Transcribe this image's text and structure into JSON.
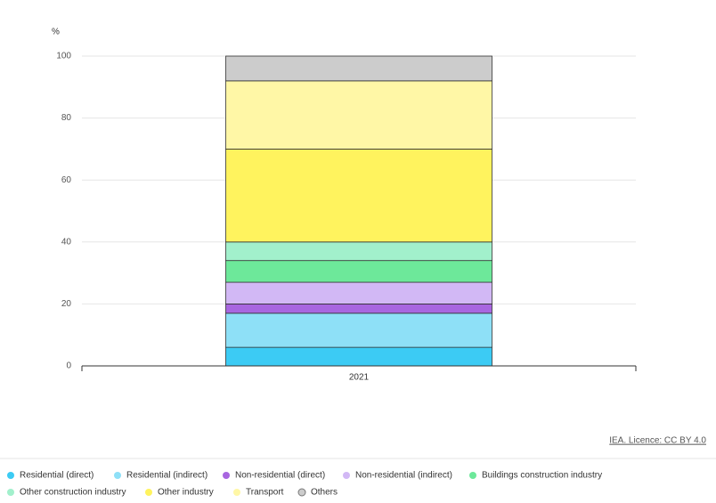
{
  "chart_data": {
    "type": "stacked-bar",
    "y_label": "%",
    "categories": [
      "2021"
    ],
    "series": [
      {
        "name": "Residential (direct)",
        "color": "#3ccbf4",
        "values": [
          6
        ]
      },
      {
        "name": "Residential (indirect)",
        "color": "#8ee0f7",
        "values": [
          11
        ]
      },
      {
        "name": "Non-residential (direct)",
        "color": "#a866e0",
        "values": [
          3
        ]
      },
      {
        "name": "Non-residential (indirect)",
        "color": "#d2b8f5",
        "values": [
          7
        ]
      },
      {
        "name": "Buildings construction industry",
        "color": "#6de89a",
        "values": [
          7
        ]
      },
      {
        "name": "Other construction industry",
        "color": "#a2f0cc",
        "values": [
          6
        ]
      },
      {
        "name": "Other industry",
        "color": "#fff35e",
        "values": [
          30
        ]
      },
      {
        "name": "Transport",
        "color": "#fff7a6",
        "values": [
          22
        ]
      },
      {
        "name": "Others",
        "color": "#cccccc",
        "values": [
          8
        ]
      }
    ],
    "ylim": [
      0,
      100
    ],
    "yticks": [
      0,
      20,
      40,
      60,
      80,
      100
    ],
    "grid": true,
    "source": "IEA. Licence: CC BY 4.0"
  }
}
